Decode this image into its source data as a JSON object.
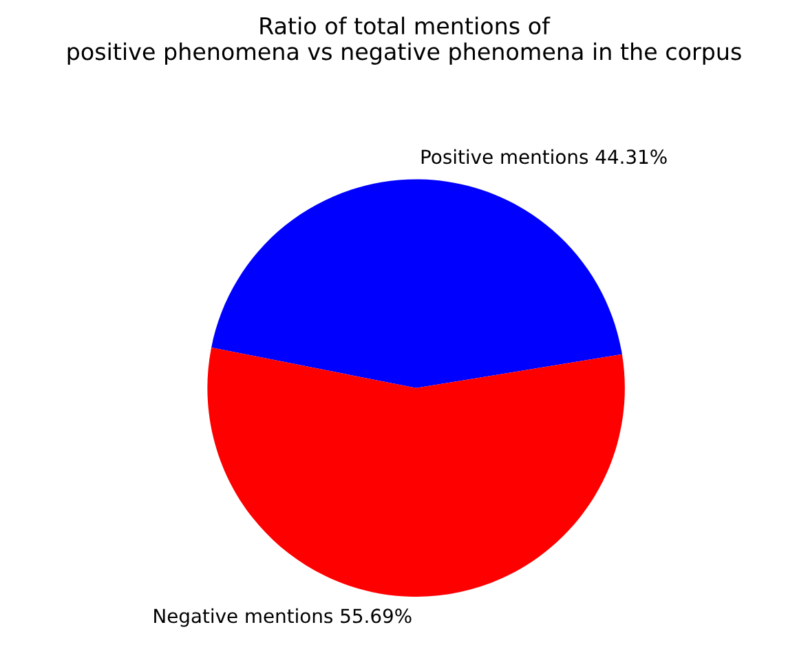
{
  "chart_data": {
    "type": "pie",
    "title": "Ratio of total mentions of\npositive phenomena vs negative phenomena in the corpus",
    "categories": [
      "Positive mentions 44.31%",
      "Negative mentions 55.69%"
    ],
    "values": [
      44.31,
      55.69
    ],
    "colors": [
      "#0000ff",
      "#ff0000"
    ]
  }
}
